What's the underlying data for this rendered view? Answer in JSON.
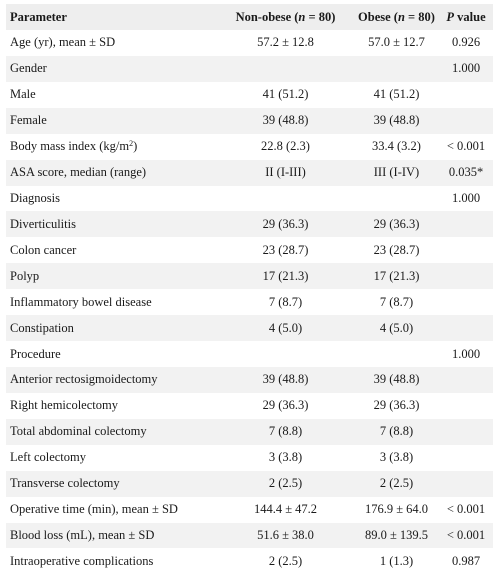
{
  "table": {
    "headers": {
      "parameter": "Parameter",
      "non_obese_prefix": "Non-obese (",
      "non_obese_n": "n",
      "non_obese_suffix": " = 80)",
      "obese_prefix": "Obese (",
      "obese_n": "n",
      "obese_suffix": " = 80)",
      "p_letter": "P",
      "p_suffix": " value"
    },
    "rows": [
      {
        "label": "Age (yr), mean ± SD",
        "non_obese": "57.2 ± 12.8",
        "obese": "57.0 ± 12.7",
        "p": "0.926"
      },
      {
        "label": "Gender",
        "non_obese": "",
        "obese": "",
        "p": "1.000"
      },
      {
        "label": "Male",
        "non_obese": "41 (51.2)",
        "obese": "41 (51.2)",
        "p": ""
      },
      {
        "label": "Female",
        "non_obese": "39 (48.8)",
        "obese": "39 (48.8)",
        "p": ""
      },
      {
        "label": "Body mass index (kg/m",
        "label_sup": "2",
        "label_after": ")",
        "non_obese": "22.8 (2.3)",
        "obese": "33.4 (3.2)",
        "p": "< 0.001"
      },
      {
        "label": "ASA score, median (range)",
        "non_obese": "II (I-III)",
        "obese": "III (I-IV)",
        "p": "0.035*"
      },
      {
        "label": "Diagnosis",
        "non_obese": "",
        "obese": "",
        "p": "1.000"
      },
      {
        "label": "Diverticulitis",
        "non_obese": "29 (36.3)",
        "obese": "29 (36.3)",
        "p": ""
      },
      {
        "label": "Colon cancer",
        "non_obese": "23 (28.7)",
        "obese": "23 (28.7)",
        "p": ""
      },
      {
        "label": "Polyp",
        "non_obese": "17 (21.3)",
        "obese": "17 (21.3)",
        "p": ""
      },
      {
        "label": "Inflammatory bowel disease",
        "non_obese": "7 (8.7)",
        "obese": "7 (8.7)",
        "p": ""
      },
      {
        "label": "Constipation",
        "non_obese": "4 (5.0)",
        "obese": "4 (5.0)",
        "p": ""
      },
      {
        "label": "Procedure",
        "non_obese": "",
        "obese": "",
        "p": "1.000"
      },
      {
        "label": "Anterior rectosigmoidectomy",
        "non_obese": "39 (48.8)",
        "obese": "39 (48.8)",
        "p": ""
      },
      {
        "label": "Right hemicolectomy",
        "non_obese": "29 (36.3)",
        "obese": "29 (36.3)",
        "p": ""
      },
      {
        "label": "Total abdominal colectomy",
        "non_obese": "7 (8.8)",
        "obese": "7 (8.8)",
        "p": ""
      },
      {
        "label": "Left colectomy",
        "non_obese": "3 (3.8)",
        "obese": "3 (3.8)",
        "p": ""
      },
      {
        "label": "Transverse colectomy",
        "non_obese": "2 (2.5)",
        "obese": "2 (2.5)",
        "p": ""
      },
      {
        "label": "Operative time (min), mean ± SD",
        "non_obese": "144.4 ± 47.2",
        "obese": "176.9 ± 64.0",
        "p": "< 0.001"
      },
      {
        "label": "Blood loss (mL), mean ± SD",
        "non_obese": "51.6 ± 38.0",
        "obese": "89.0 ± 139.5",
        "p": "< 0.001"
      },
      {
        "label": "Intraoperative complications",
        "non_obese": "2 (2.5)",
        "obese": "1 (1.3)",
        "p": "0.987"
      }
    ]
  }
}
